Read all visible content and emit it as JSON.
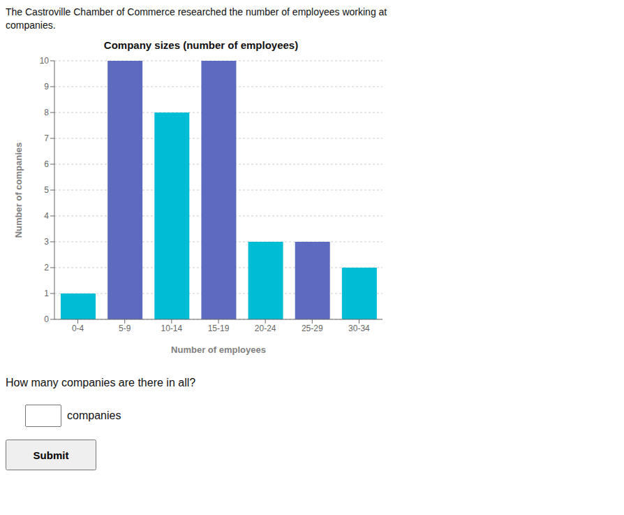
{
  "chart_data": {
    "type": "bar",
    "title": "Company sizes (number of employees)",
    "categories": [
      "0-4",
      "5-9",
      "10-14",
      "15-19",
      "20-24",
      "25-29",
      "30-34"
    ],
    "values": [
      1,
      10,
      8,
      10,
      3,
      3,
      2
    ],
    "colors": [
      "#00bcd4",
      "#5c6bc0",
      "#00bcd4",
      "#5c6bc0",
      "#00bcd4",
      "#5c6bc0",
      "#00bcd4"
    ],
    "xlabel": "Number of employees",
    "ylabel": "Number of companies",
    "ylim": [
      0,
      10
    ],
    "yticks": [
      0,
      1,
      2,
      3,
      4,
      5,
      6,
      7,
      8,
      9,
      10
    ],
    "grid": true,
    "annotations": [
      "The Castroville Chamber of Commerce researched the number of employees working at",
      "companies.",
      "How many companies are there in all?",
      "companies",
      "Submit"
    ]
  }
}
